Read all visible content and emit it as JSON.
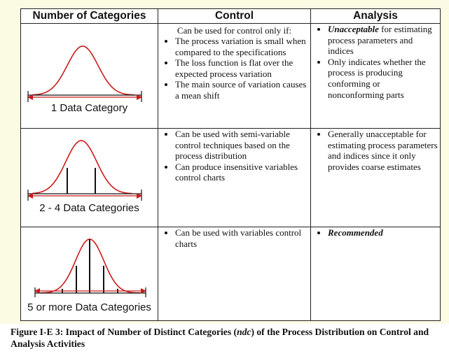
{
  "headers": {
    "categories": "Number of Categories",
    "control": "Control",
    "analysis": "Analysis"
  },
  "rows": [
    {
      "category_label": "1 Data Category",
      "control_intro": "Can be used for control only if:",
      "control_bullets": [
        "The process variation is small when compared to the specifications",
        "The loss function is flat over the expected process variation",
        "The main source of variation causes a mean shift"
      ],
      "analysis_bullets": [
        {
          "emphasis": "Unacceptable",
          "text": " for estimating process parameters and indices"
        },
        {
          "emphasis": "",
          "text": "Only indicates whether the process is producing conforming or nonconforming parts"
        }
      ]
    },
    {
      "category_label": "2 - 4 Data Categories",
      "control_bullets": [
        "Can be used with semi-variable control techniques based on the process distribution",
        "Can produce insensitive variables control charts"
      ],
      "analysis_bullets": [
        {
          "emphasis": "",
          "text": "Generally unacceptable for estimating process parameters and indices since it only provides coarse estimates"
        }
      ]
    },
    {
      "category_label": "5 or more Data Categories",
      "control_bullets": [
        "Can be used with variables control charts"
      ],
      "analysis_bullets": [
        {
          "emphasis": "Recommended",
          "text": ""
        }
      ]
    }
  ],
  "caption": {
    "prefix": "Figure I-E 3:  Impact of Number of Distinct Categories (",
    "ndc": "ndc",
    "suffix": ") of the Process Distribution on Control and Analysis Activities"
  },
  "colors": {
    "curve": "#cc1a1a",
    "arrow": "#cc1a1a",
    "axis": "#111111",
    "background": "#fbfbe3"
  }
}
